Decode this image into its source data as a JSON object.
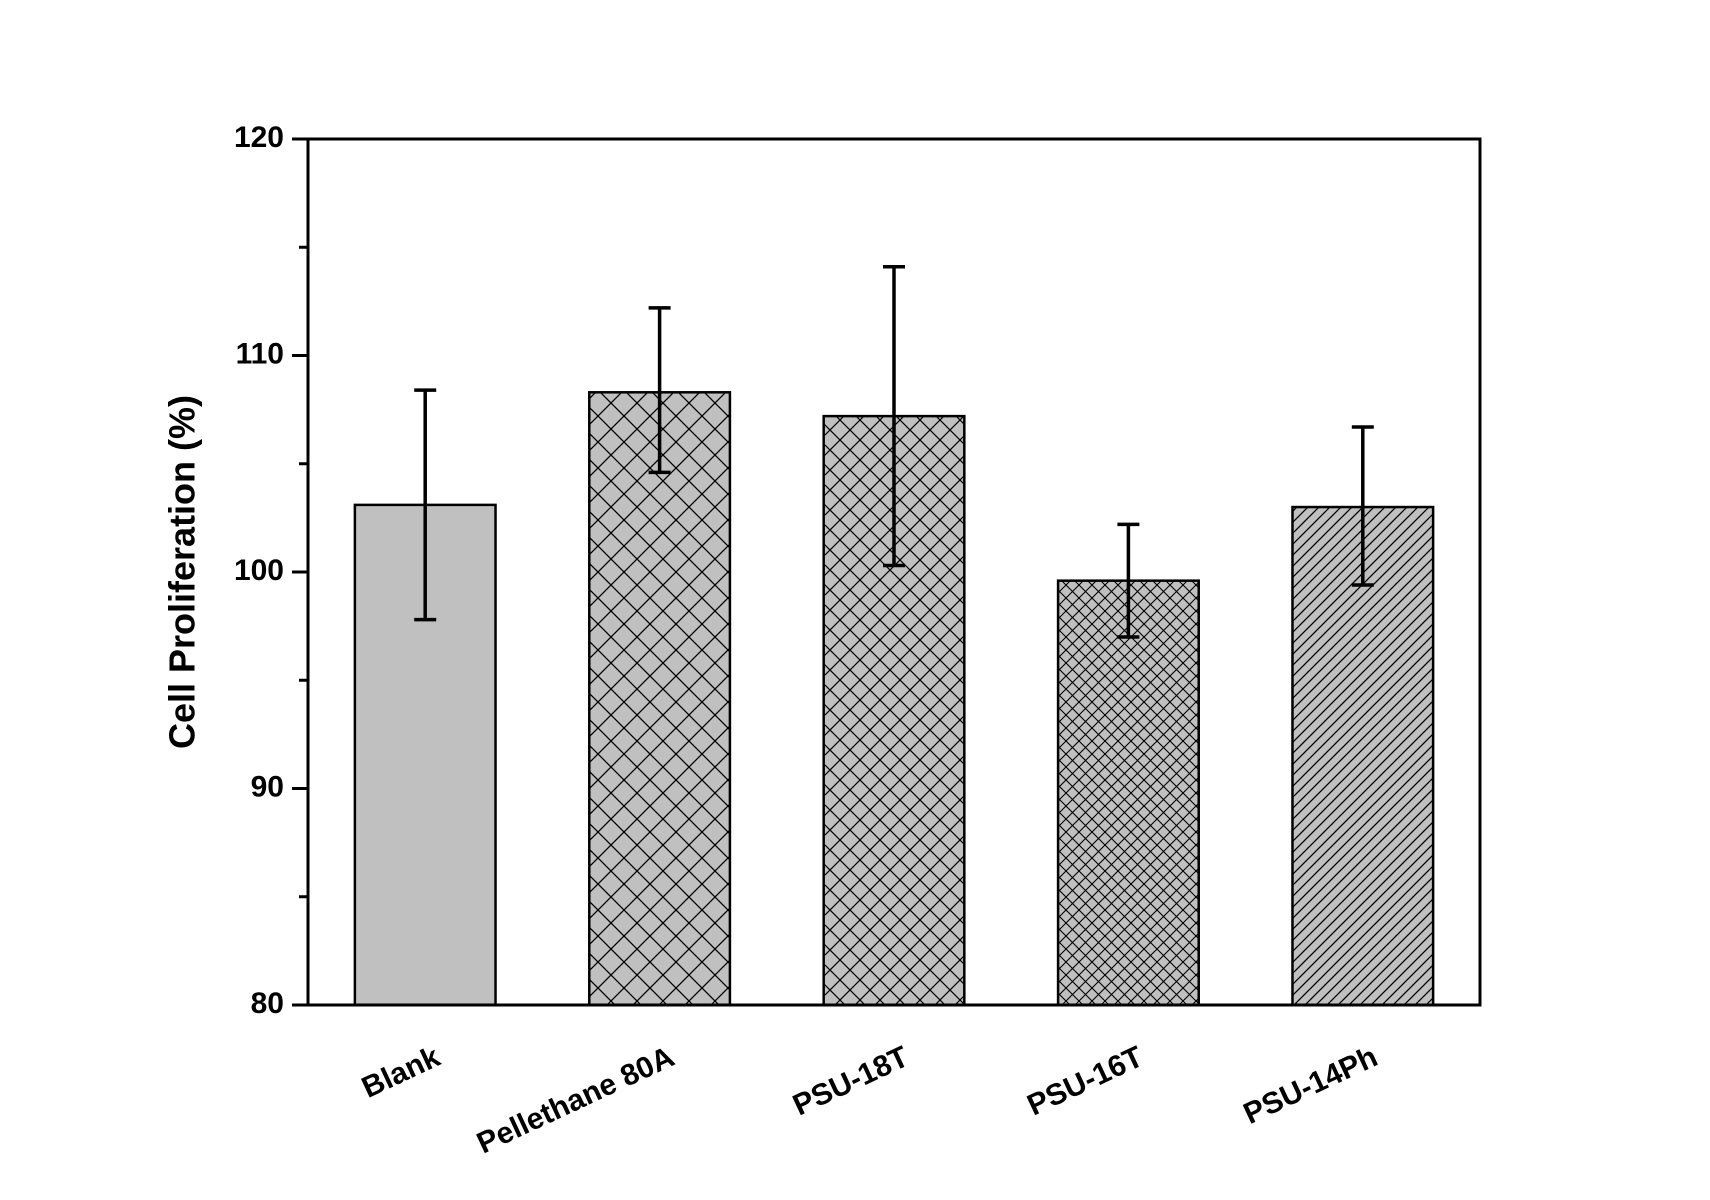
{
  "chart_data": {
    "type": "bar",
    "title": "",
    "xlabel": "",
    "ylabel": "Cell Proliferation (%)",
    "ylim": [
      80,
      120
    ],
    "yticks": [
      80,
      90,
      100,
      110,
      120
    ],
    "grid": false,
    "legend": "none",
    "categories": [
      "Blank",
      "Pellethane 80A",
      "PSU-18T",
      "PSU-16T",
      "PSU-14Ph"
    ],
    "values": [
      103.1,
      108.3,
      107.2,
      99.6,
      103.0
    ],
    "error_low": [
      97.8,
      104.6,
      100.3,
      97.0,
      99.4
    ],
    "error_high": [
      108.4,
      112.2,
      114.1,
      102.2,
      106.7
    ],
    "bar_fill": "#c0c0c0",
    "patterns": [
      "none",
      "crosshatch-wide",
      "crosshatch",
      "crosshatch-fine",
      "diagonal"
    ]
  }
}
